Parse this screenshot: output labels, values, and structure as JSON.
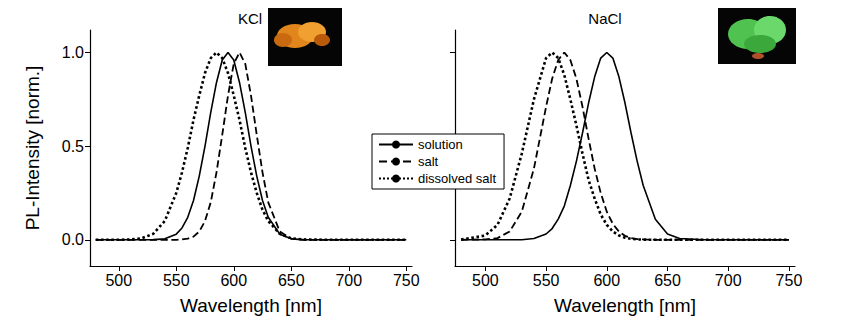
{
  "chart_data": [
    {
      "type": "line",
      "title": "KCl",
      "x_label": "Wavelength [nm]",
      "y_label": "PL-Intensity [norm.]",
      "x": [
        480,
        500,
        510,
        520,
        530,
        540,
        550,
        555,
        560,
        565,
        570,
        575,
        580,
        585,
        590,
        595,
        600,
        605,
        610,
        615,
        620,
        625,
        630,
        640,
        650,
        660,
        680,
        700,
        750
      ],
      "xlim": [
        475,
        755
      ],
      "xticks": [
        500,
        550,
        600,
        650,
        700,
        750
      ],
      "ylim": [
        -0.14,
        1.12
      ],
      "yticks": [
        {
          "value": 0,
          "label": "0.0"
        },
        {
          "value": 0.5,
          "label": "0.5"
        },
        {
          "value": 1,
          "label": "1.0"
        }
      ],
      "series": [
        {
          "name": "solution",
          "color": "#000000",
          "line_style": "solid",
          "values": [
            0,
            0,
            0,
            0,
            0.001,
            0.005,
            0.03,
            0.063,
            0.12,
            0.21,
            0.34,
            0.5,
            0.68,
            0.84,
            0.96,
            1,
            0.96,
            0.84,
            0.68,
            0.5,
            0.34,
            0.21,
            0.12,
            0.03,
            0.005,
            0.001,
            0,
            0,
            0
          ]
        },
        {
          "name": "salt",
          "color": "#000000",
          "line_style": "dashed",
          "values": [
            0,
            0,
            0,
            0,
            0,
            0,
            0,
            0.002,
            0.006,
            0.017,
            0.044,
            0.1,
            0.2,
            0.36,
            0.56,
            0.77,
            0.94,
            1,
            0.94,
            0.77,
            0.56,
            0.36,
            0.2,
            0.044,
            0.006,
            0,
            0,
            0,
            0
          ]
        },
        {
          "name": "dissolved salt",
          "color": "#000000",
          "line_style": "dotted",
          "values": [
            0,
            0,
            0.002,
            0.008,
            0.032,
            0.1,
            0.25,
            0.36,
            0.49,
            0.64,
            0.77,
            0.89,
            0.97,
            1,
            0.97,
            0.89,
            0.77,
            0.64,
            0.49,
            0.36,
            0.25,
            0.16,
            0.1,
            0.032,
            0.008,
            0.002,
            0,
            0,
            0
          ]
        }
      ]
    },
    {
      "type": "line",
      "title": "NaCl",
      "x_label": "Wavelength [nm]",
      "tick_labels": "x",
      "legend": "center",
      "x": [
        480,
        500,
        510,
        520,
        530,
        540,
        550,
        555,
        560,
        565,
        570,
        575,
        580,
        585,
        590,
        595,
        600,
        605,
        610,
        615,
        620,
        625,
        630,
        640,
        650,
        660,
        680,
        700,
        750
      ],
      "xlim": [
        475,
        755
      ],
      "xticks": [
        500,
        550,
        600,
        650,
        700,
        750
      ],
      "ylim": [
        -0.14,
        1.12
      ],
      "yticks": [
        {
          "value": 0,
          "label": "0.0"
        },
        {
          "value": 0.5,
          "label": "0.5"
        },
        {
          "value": 1,
          "label": "1.0"
        }
      ],
      "series": [
        {
          "name": "solution",
          "color": "#000000",
          "line_style": "solid",
          "values": [
            0,
            0,
            0,
            0,
            0,
            0.007,
            0.031,
            0.06,
            0.11,
            0.18,
            0.29,
            0.42,
            0.57,
            0.73,
            0.87,
            0.97,
            1,
            0.97,
            0.87,
            0.73,
            0.57,
            0.42,
            0.29,
            0.11,
            0.031,
            0.007,
            0,
            0,
            0
          ]
        },
        {
          "name": "salt",
          "color": "#000000",
          "line_style": "dashed",
          "values": [
            0,
            0.002,
            0.009,
            0.044,
            0.15,
            0.38,
            0.71,
            0.86,
            0.96,
            1,
            0.96,
            0.86,
            0.71,
            0.54,
            0.38,
            0.25,
            0.15,
            0.085,
            0.044,
            0.021,
            0.009,
            0.004,
            0.002,
            0,
            0,
            0,
            0,
            0,
            0
          ]
        },
        {
          "name": "dissolved salt",
          "color": "#000000",
          "line_style": "dotted",
          "values": [
            0.001,
            0.023,
            0.08,
            0.22,
            0.46,
            0.75,
            0.97,
            1,
            0.97,
            0.88,
            0.75,
            0.61,
            0.46,
            0.32,
            0.22,
            0.135,
            0.08,
            0.044,
            0.023,
            0.011,
            0.005,
            0.002,
            0.001,
            0,
            0,
            0,
            0,
            0,
            0
          ]
        }
      ]
    }
  ]
}
